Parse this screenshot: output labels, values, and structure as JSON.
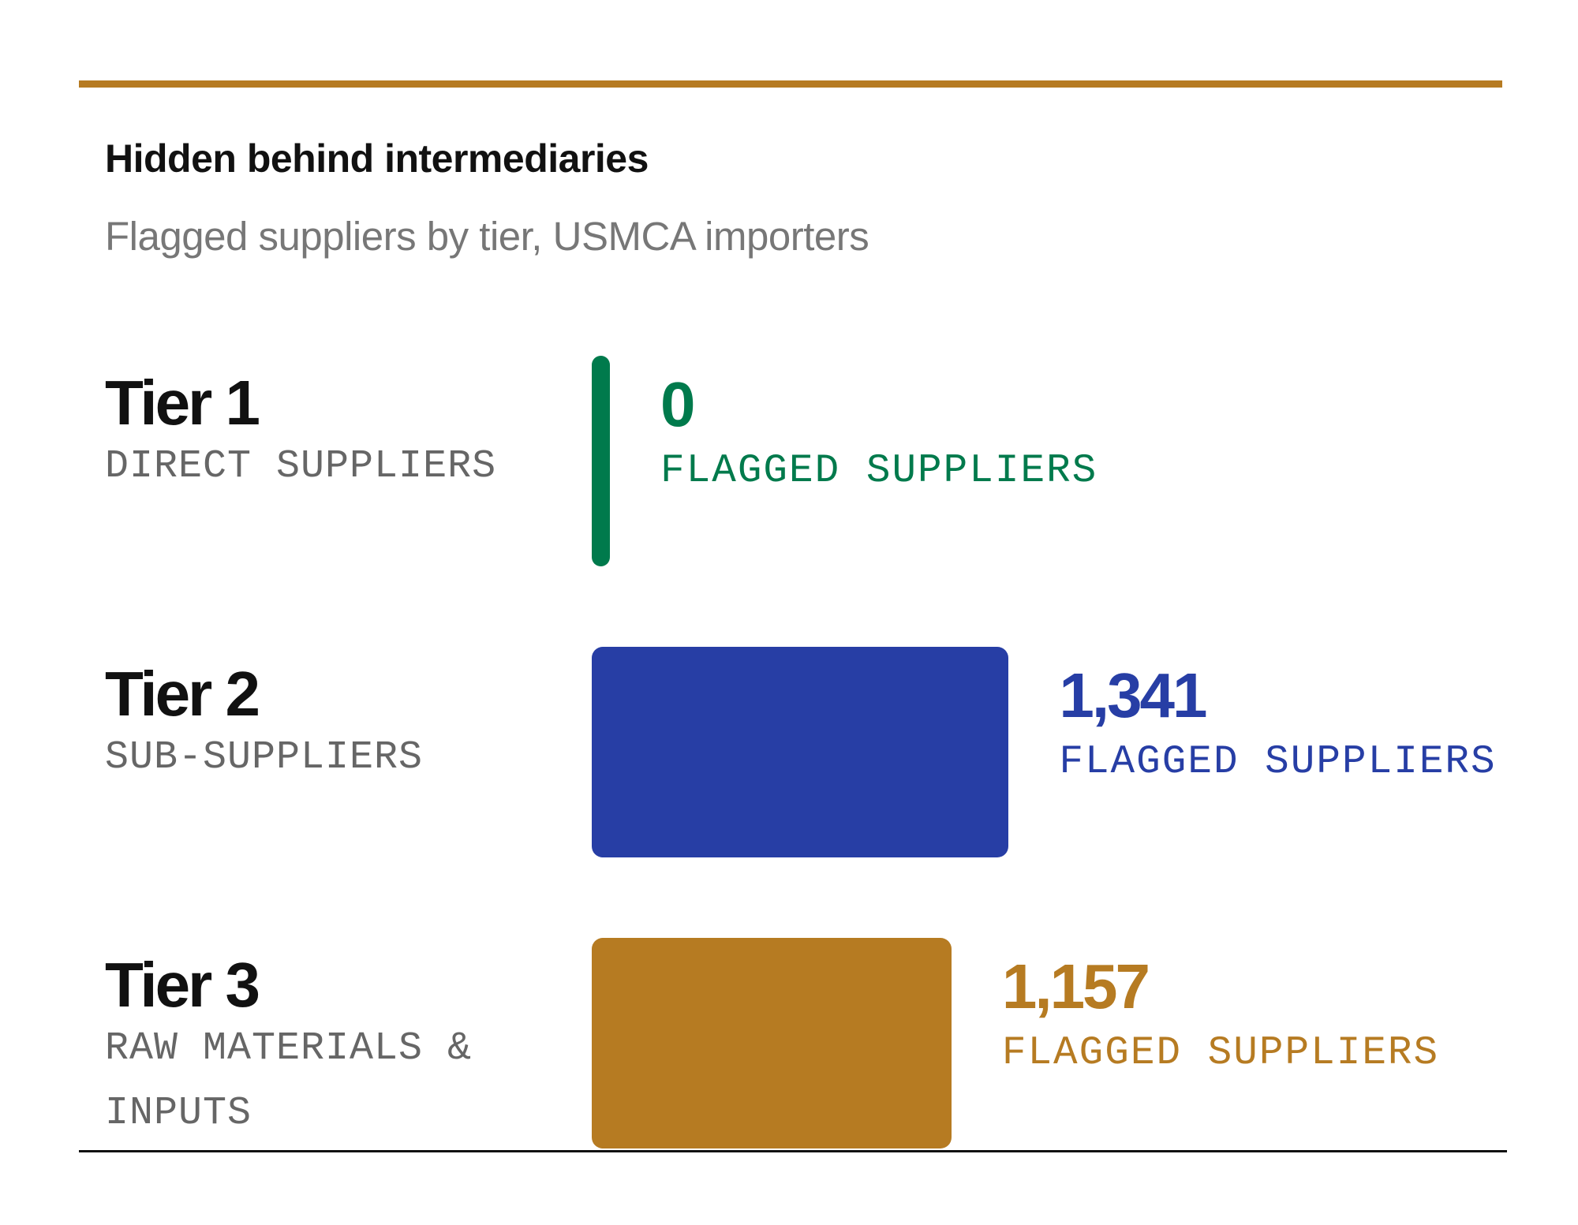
{
  "chart_data": {
    "type": "bar",
    "orientation": "horizontal",
    "title": "Hidden behind intermediaries",
    "subtitle": "Flagged suppliers by tier, USMCA importers",
    "categories": [
      "Tier 1",
      "Tier 2",
      "Tier 3"
    ],
    "category_descriptions": [
      "DIRECT SUPPLIERS",
      "SUB-SUPPLIERS",
      "RAW MATERIALS & INPUTS"
    ],
    "values": [
      0,
      1341,
      1157
    ],
    "value_labels": [
      "0",
      "1,341",
      "1,157"
    ],
    "value_caption": "FLAGGED SUPPLIERS",
    "colors": [
      "#007a4c",
      "#273ea5",
      "#b67b22"
    ]
  }
}
